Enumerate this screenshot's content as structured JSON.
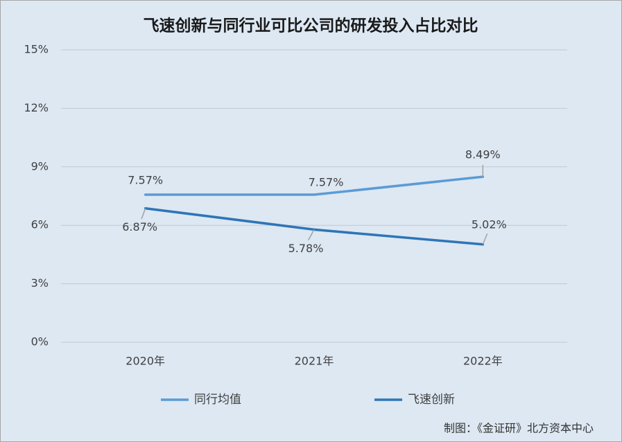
{
  "chart_data": {
    "type": "line",
    "title": "飞速创新与同行业可比公司的研发投入占比对比",
    "categories": [
      "2020年",
      "2021年",
      "2022年"
    ],
    "series": [
      {
        "name": "同行均值",
        "color": "#5b9bd5",
        "values": [
          7.57,
          7.57,
          8.49
        ],
        "value_labels": [
          "7.57%",
          "7.57%",
          "8.49%"
        ]
      },
      {
        "name": "飞速创新",
        "color": "#2e75b6",
        "values": [
          6.87,
          5.78,
          5.02
        ],
        "value_labels": [
          "6.87%",
          "5.78%",
          "5.02%"
        ]
      }
    ],
    "ylim": [
      0,
      15
    ],
    "yticks": [
      {
        "value": 0,
        "label": "0%"
      },
      {
        "value": 3,
        "label": "3%"
      },
      {
        "value": 6,
        "label": "6%"
      },
      {
        "value": 9,
        "label": "9%"
      },
      {
        "value": 12,
        "label": "12%"
      },
      {
        "value": 15,
        "label": "15%"
      }
    ],
    "grid": true,
    "legend": "bottom",
    "source": "制图：《金证研》北方资本中心"
  }
}
